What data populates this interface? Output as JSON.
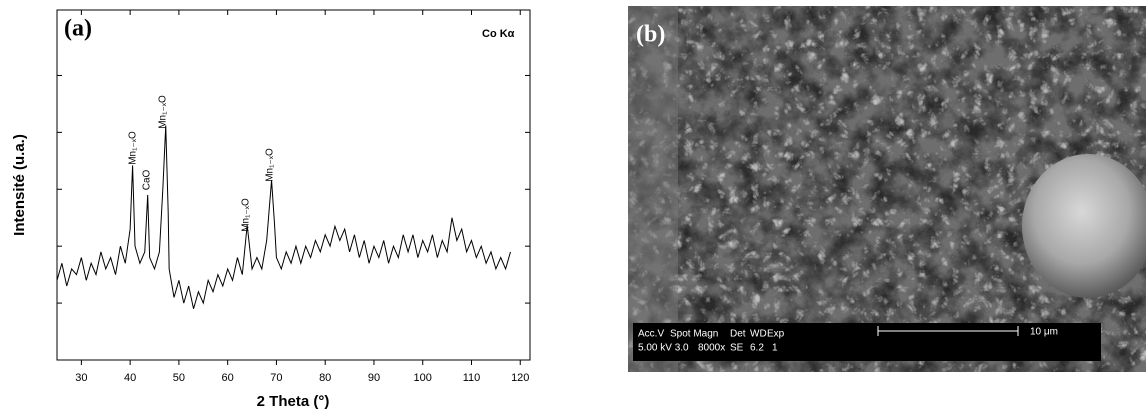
{
  "chart_data": {
    "type": "line",
    "panel_label": "(a)",
    "radiation_label": "Co Kα",
    "x_label": "2 Theta (°)",
    "y_label": "Intensité (u.a.)",
    "xlim": [
      25,
      122
    ],
    "xticks": [
      30,
      40,
      50,
      60,
      70,
      80,
      90,
      100,
      110,
      120
    ],
    "ylim": [
      0,
      6.15
    ],
    "yticks": [
      1,
      2,
      3,
      4,
      5
    ],
    "color": "#000000",
    "x": [
      25,
      26,
      27,
      28,
      29,
      30,
      31,
      32,
      33,
      34,
      35,
      36,
      37,
      38,
      39,
      40,
      40.5,
      41,
      42,
      43,
      43.6,
      44,
      45,
      46,
      46.7,
      47.3,
      47.8,
      48,
      49,
      50,
      51,
      52,
      53,
      54,
      55,
      56,
      57,
      58,
      59,
      60,
      61,
      62,
      63,
      64,
      65,
      66,
      67,
      68,
      69,
      69.6,
      70,
      71,
      72,
      73,
      74,
      75,
      76,
      77,
      78,
      79,
      80,
      81,
      82,
      83,
      84,
      85,
      86,
      87,
      88,
      89,
      90,
      91,
      92,
      93,
      94,
      95,
      96,
      97,
      98,
      99,
      100,
      101,
      102,
      103,
      104,
      105,
      106,
      107,
      108,
      109,
      110,
      111,
      112,
      113,
      114,
      115,
      116,
      117,
      118
    ],
    "values": [
      1.4,
      1.7,
      1.3,
      1.6,
      1.5,
      1.8,
      1.4,
      1.7,
      1.5,
      1.9,
      1.6,
      1.8,
      1.5,
      2.0,
      1.7,
      2.3,
      3.42,
      2.0,
      1.7,
      1.9,
      2.9,
      1.8,
      1.6,
      1.9,
      3.0,
      4.12,
      2.6,
      1.6,
      1.1,
      1.4,
      1.0,
      1.3,
      0.9,
      1.2,
      1.0,
      1.4,
      1.2,
      1.5,
      1.3,
      1.6,
      1.4,
      1.8,
      1.5,
      2.37,
      1.6,
      1.8,
      1.6,
      2.1,
      3.16,
      2.4,
      1.8,
      1.6,
      1.9,
      1.7,
      2.0,
      1.7,
      2.0,
      1.8,
      2.1,
      1.9,
      2.2,
      2.0,
      2.35,
      2.1,
      2.3,
      1.9,
      2.2,
      1.8,
      2.1,
      1.7,
      2.0,
      1.8,
      2.1,
      1.7,
      2.0,
      1.8,
      2.2,
      1.9,
      2.2,
      1.8,
      2.1,
      1.9,
      2.2,
      1.8,
      2.1,
      1.9,
      2.5,
      2.1,
      2.3,
      1.9,
      2.1,
      1.8,
      2.0,
      1.7,
      1.9,
      1.6,
      1.8,
      1.6,
      1.9
    ],
    "annotations": [
      "Mn₁₋ₓO",
      "CaO",
      "Mn₁₋ₓO",
      "Mn₁₋ₓO",
      "Mn₁₋ₓO"
    ]
  },
  "sem_image": {
    "panel_label": "(b)",
    "info_header": [
      "Acc.V",
      "Spot Magn",
      "Det",
      "WD",
      "Exp"
    ],
    "info_values": [
      "5.00 kV 3.0",
      "8000x",
      "SE",
      "6.2",
      "1"
    ],
    "scale_label": "10 μm"
  }
}
